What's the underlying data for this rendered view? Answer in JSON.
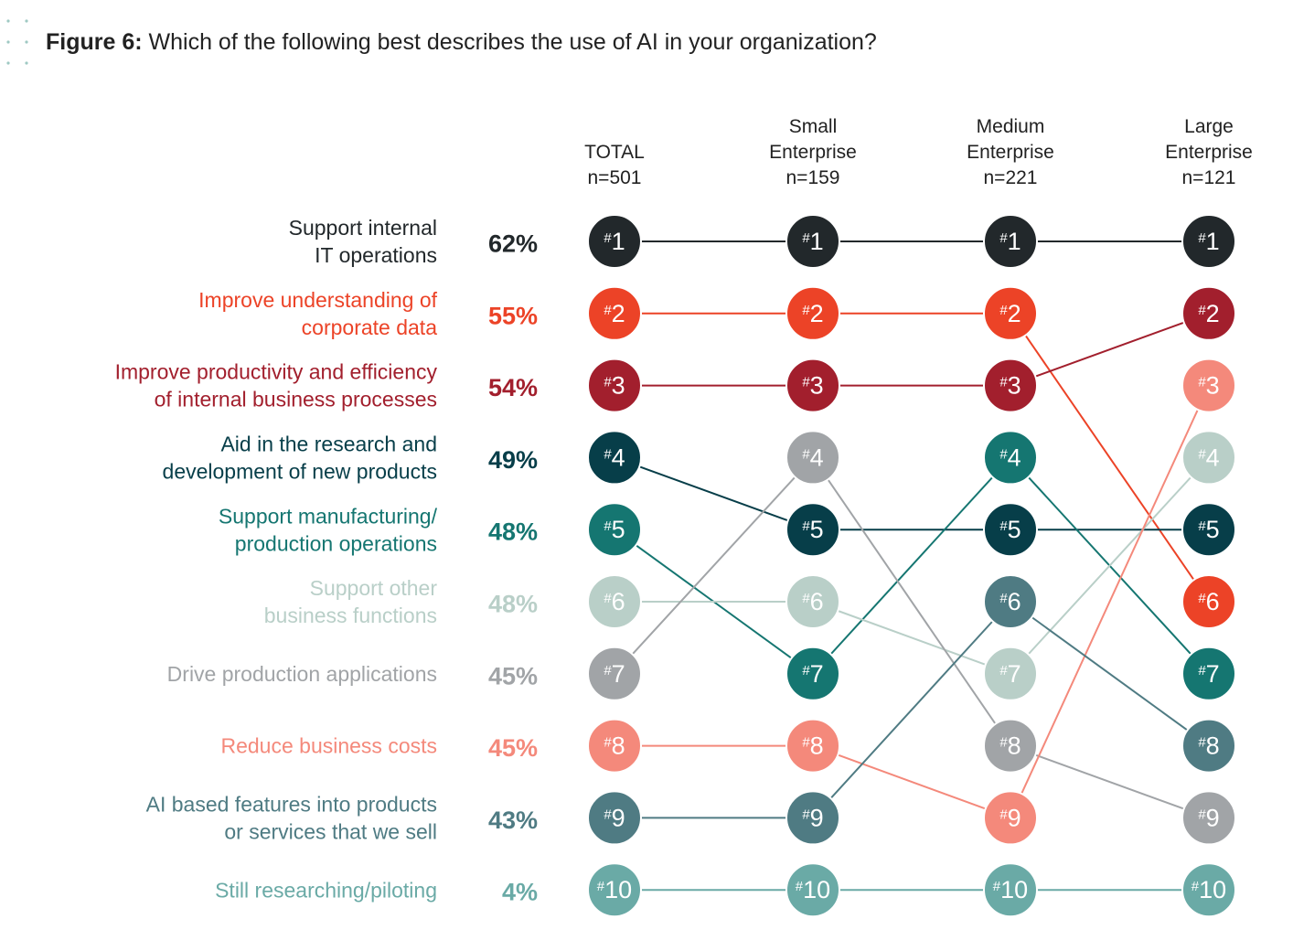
{
  "figure_label": "Figure 6:",
  "figure_question": "Which of the following best describes the use of AI in your organization?",
  "colors": {
    "c1": "#22282b",
    "c2": "#ec4327",
    "c3": "#a21f2d",
    "c4": "#073e49",
    "c5": "#157671",
    "c6": "#b9cfc8",
    "c7": "#a1a4a7",
    "c8": "#f4897b",
    "c9": "#4f7b83",
    "c10": "#6aaaa6"
  },
  "chart_data": {
    "type": "table",
    "columns": [
      {
        "label_lines": [
          "TOTAL",
          "n=501"
        ]
      },
      {
        "label_lines": [
          "Small",
          "Enterprise",
          "n=159"
        ]
      },
      {
        "label_lines": [
          "Medium",
          "Enterprise",
          "n=221"
        ]
      },
      {
        "label_lines": [
          "Large",
          "Enterprise",
          "n=121"
        ]
      }
    ],
    "rows": [
      {
        "label_lines": [
          "Support internal",
          "IT operations"
        ],
        "total_pct": "62%",
        "color": "#22282b",
        "ranks": [
          1,
          1,
          1,
          1
        ]
      },
      {
        "label_lines": [
          "Improve understanding of",
          "corporate data"
        ],
        "total_pct": "55%",
        "color": "#ec4327",
        "ranks": [
          2,
          2,
          2,
          6
        ]
      },
      {
        "label_lines": [
          "Improve productivity and efficiency",
          "of internal business processes"
        ],
        "total_pct": "54%",
        "color": "#a21f2d",
        "ranks": [
          3,
          3,
          3,
          2
        ]
      },
      {
        "label_lines": [
          "Aid in the research and",
          "development of new products"
        ],
        "total_pct": "49%",
        "color": "#073e49",
        "ranks": [
          4,
          5,
          5,
          5
        ]
      },
      {
        "label_lines": [
          "Support manufacturing/",
          "production operations"
        ],
        "total_pct": "48%",
        "color": "#157671",
        "ranks": [
          5,
          7,
          4,
          7
        ]
      },
      {
        "label_lines": [
          "Support other",
          "business functions"
        ],
        "total_pct": "48%",
        "color": "#b9cfc8",
        "ranks": [
          6,
          6,
          7,
          4
        ]
      },
      {
        "label_lines": [
          "Drive production applications"
        ],
        "total_pct": "45%",
        "color": "#a1a4a7",
        "ranks": [
          7,
          4,
          8,
          9
        ]
      },
      {
        "label_lines": [
          "Reduce business costs"
        ],
        "total_pct": "45%",
        "color": "#f4897b",
        "ranks": [
          8,
          8,
          9,
          3
        ]
      },
      {
        "label_lines": [
          "AI based features into products",
          "or services that we sell"
        ],
        "total_pct": "43%",
        "color": "#4f7b83",
        "ranks": [
          9,
          9,
          6,
          8
        ]
      },
      {
        "label_lines": [
          "Still researching/piloting"
        ],
        "total_pct": "4%",
        "color": "#6aaaa6",
        "ranks": [
          10,
          10,
          10,
          10
        ]
      }
    ]
  }
}
